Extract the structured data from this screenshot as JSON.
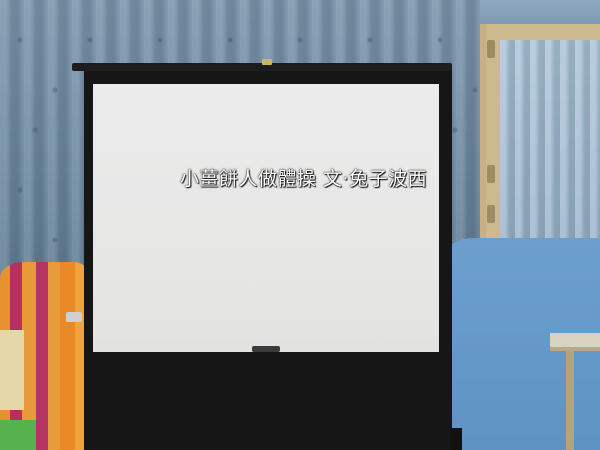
{
  "screen": {
    "title_text": "小薑餅人做體操  文‧兔子波西"
  }
}
